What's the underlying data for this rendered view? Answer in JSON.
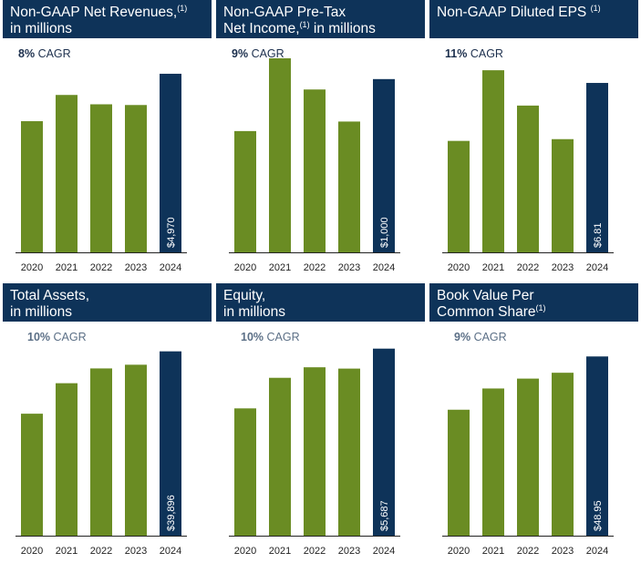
{
  "colors": {
    "header_bg": "#0e3359",
    "bar_past": "#6a8c23",
    "bar_latest": "#0e3359",
    "axis": "#222222"
  },
  "panels": [
    {
      "title": "Non-GAAP Net Revenues,",
      "title_sup": "(1)",
      "title_line2": "in millions",
      "title_line2_prefix": "",
      "cagr_pct": "8%",
      "cagr_label": "CAGR",
      "value_label": "$4,970"
    },
    {
      "title": "Non-GAAP Pre-Tax",
      "title_sup": "(1)",
      "title_line2_prefix": "Net Income,",
      "title_line2": " in millions",
      "cagr_pct": "9%",
      "cagr_label": "CAGR",
      "value_label": "$1,000"
    },
    {
      "title": "Non-GAAP Diluted EPS",
      "title_sup": "(1)",
      "title_line2_prefix": "",
      "title_line2": "",
      "cagr_pct": "11%",
      "cagr_label": "CAGR",
      "value_label": "$6.81"
    },
    {
      "title": "Total Assets,",
      "title_sup": "",
      "title_line2_prefix": "",
      "title_line2": "in millions",
      "cagr_pct": "10%",
      "cagr_label": "CAGR",
      "value_label": "$39,896"
    },
    {
      "title": "Equity,",
      "title_sup": "",
      "title_line2_prefix": "",
      "title_line2": "in millions",
      "cagr_pct": "10%",
      "cagr_label": "CAGR",
      "value_label": "$5,687"
    },
    {
      "title": "Book Value Per",
      "title_sup": "(1)",
      "title_line2_prefix": "Common Share",
      "title_line2": "",
      "cagr_pct": "9%",
      "cagr_label": "CAGR",
      "value_label": "$48.95"
    }
  ],
  "chart_data": [
    {
      "type": "bar",
      "title": "Non-GAAP Net Revenues, in millions",
      "categories": [
        "2020",
        "2021",
        "2022",
        "2023",
        "2024"
      ],
      "values": [
        3650,
        4380,
        4120,
        4100,
        4970
      ],
      "data_labels": [
        "",
        "",
        "",
        "",
        "$4,970"
      ],
      "ylim": [
        0,
        5400
      ],
      "grid": false
    },
    {
      "type": "bar",
      "title": "Non-GAAP Pre-Tax Net Income, in millions",
      "categories": [
        "2020",
        "2021",
        "2022",
        "2023",
        "2024"
      ],
      "values": [
        700,
        1120,
        940,
        755,
        1000
      ],
      "data_labels": [
        "",
        "",
        "",
        "",
        "$1,000"
      ],
      "ylim": [
        0,
        1120
      ],
      "grid": false
    },
    {
      "type": "bar",
      "title": "Non-GAAP Diluted EPS",
      "categories": [
        "2020",
        "2021",
        "2022",
        "2023",
        "2024"
      ],
      "values": [
        4.48,
        7.32,
        5.9,
        4.55,
        6.81
      ],
      "data_labels": [
        "",
        "",
        "",
        "",
        "$6.81"
      ],
      "ylim": [
        0,
        7.8
      ],
      "grid": false
    },
    {
      "type": "bar",
      "title": "Total Assets, in millions",
      "categories": [
        "2020",
        "2021",
        "2022",
        "2023",
        "2024"
      ],
      "values": [
        26400,
        33000,
        36200,
        37000,
        39896
      ],
      "data_labels": [
        "",
        "",
        "",
        "",
        "$39,896"
      ],
      "ylim": [
        0,
        42000
      ],
      "grid": false
    },
    {
      "type": "bar",
      "title": "Equity, in millions",
      "categories": [
        "2020",
        "2021",
        "2022",
        "2023",
        "2024"
      ],
      "values": [
        3870,
        4800,
        5120,
        5080,
        5687
      ],
      "data_labels": [
        "",
        "",
        "",
        "",
        "$5,687"
      ],
      "ylim": [
        0,
        5900
      ],
      "grid": false
    },
    {
      "type": "bar",
      "title": "Book Value Per Common Share",
      "categories": [
        "2020",
        "2021",
        "2022",
        "2023",
        "2024"
      ],
      "values": [
        34.4,
        40.2,
        42.9,
        44.5,
        48.95
      ],
      "data_labels": [
        "",
        "",
        "",
        "",
        "$48.95"
      ],
      "ylim": [
        0,
        53
      ],
      "grid": false
    }
  ]
}
